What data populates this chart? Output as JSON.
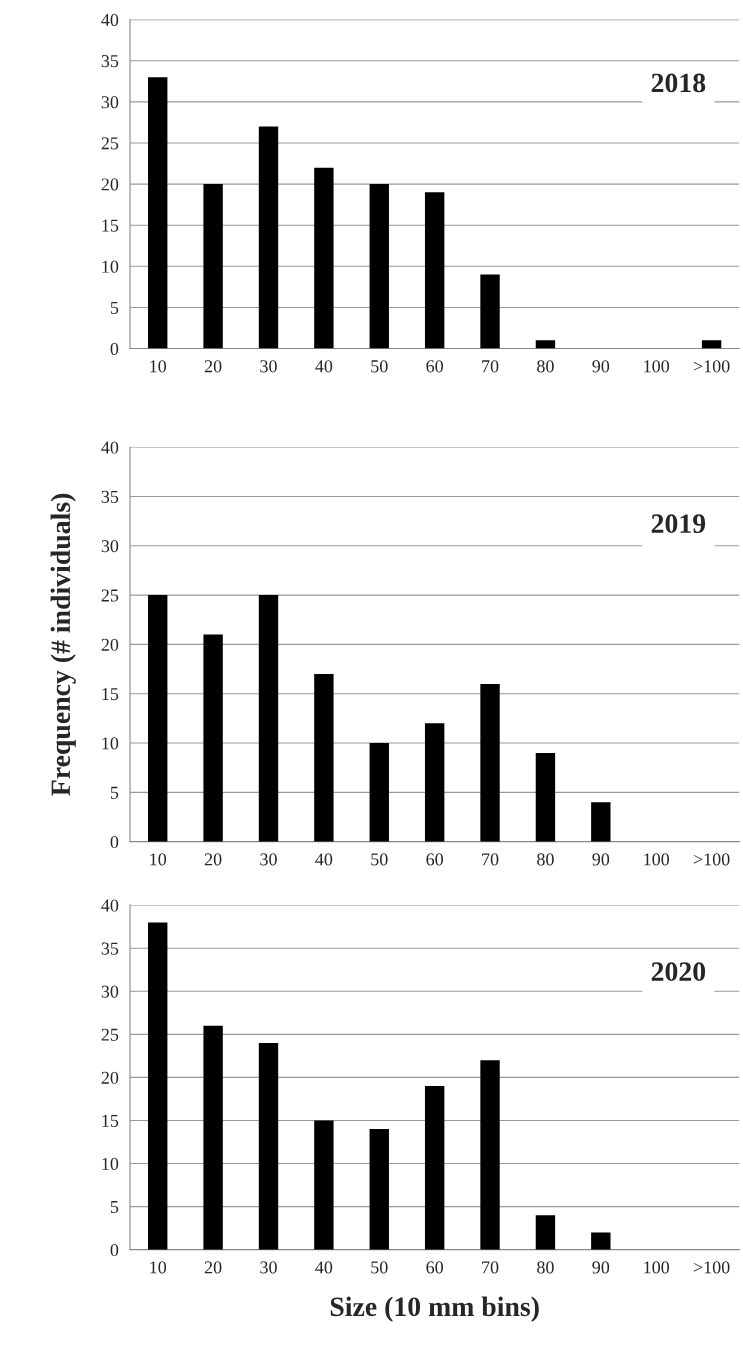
{
  "chart_data": [
    {
      "type": "bar",
      "categories": [
        "10",
        "20",
        "30",
        "40",
        "50",
        "60",
        "70",
        "80",
        "90",
        "100",
        ">100"
      ],
      "values": [
        33,
        20,
        27,
        22,
        20,
        19,
        9,
        1,
        0,
        0,
        1
      ],
      "color": "#000000",
      "ylim": [
        0,
        40
      ],
      "yticks": [
        0,
        5,
        10,
        15,
        20,
        25,
        30,
        35,
        40
      ],
      "grid": "y",
      "annotations": [
        "2018"
      ]
    },
    {
      "type": "bar",
      "categories": [
        "10",
        "20",
        "30",
        "40",
        "50",
        "60",
        "70",
        "80",
        "90",
        "100",
        ">100"
      ],
      "values": [
        25,
        21,
        25,
        17,
        10,
        12,
        16,
        9,
        4,
        0,
        0
      ],
      "color": "#000000",
      "ylim": [
        0,
        40
      ],
      "yticks": [
        0,
        5,
        10,
        15,
        20,
        25,
        30,
        35,
        40
      ],
      "grid": "y",
      "ylabel": "Frequency (# individuals)",
      "annotations": [
        "2019"
      ]
    },
    {
      "type": "bar",
      "categories": [
        "10",
        "20",
        "30",
        "40",
        "50",
        "60",
        "70",
        "80",
        "90",
        "100",
        ">100"
      ],
      "values": [
        38,
        26,
        24,
        15,
        14,
        19,
        22,
        4,
        2,
        0,
        0
      ],
      "color": "#000000",
      "ylim": [
        0,
        40
      ],
      "yticks": [
        0,
        5,
        10,
        15,
        20,
        25,
        30,
        35,
        40
      ],
      "grid": "y",
      "xlabel": "Size (10 mm bins)",
      "annotations": [
        "2020"
      ]
    }
  ]
}
